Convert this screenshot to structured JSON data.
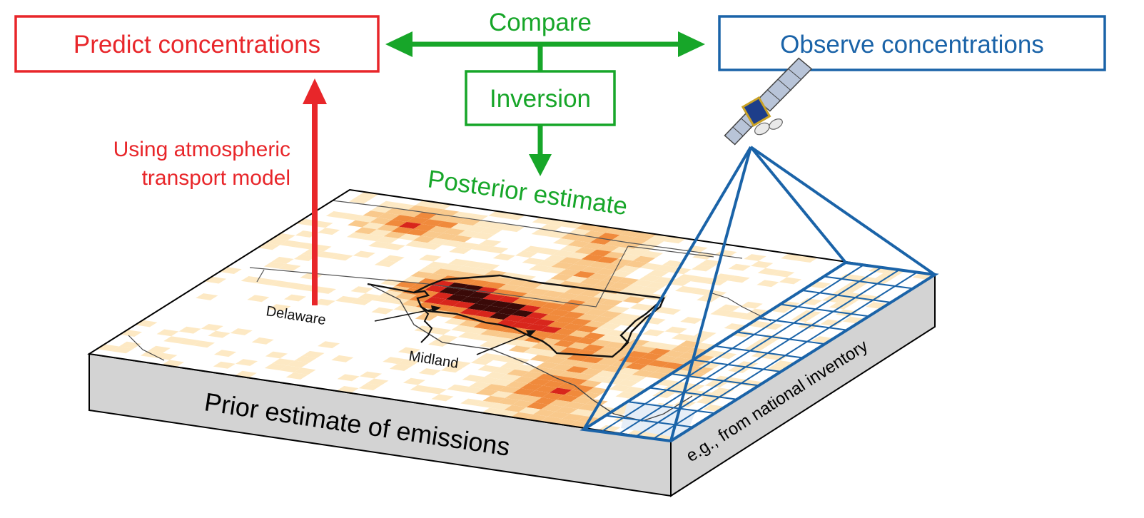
{
  "boxes": {
    "predict": {
      "label": "Predict concentrations",
      "color": "#e8262a"
    },
    "observe": {
      "label": "Observe concentrations",
      "color": "#1a63a8"
    },
    "inversion": {
      "label": "Inversion",
      "color": "#17a629"
    }
  },
  "labels": {
    "compare": "Compare",
    "transport_line1": "Using atmospheric",
    "transport_line2": "transport model",
    "posterior": "Posterior estimate",
    "prior": "Prior estimate of emissions",
    "inventory": "e.g., from national inventory",
    "delaware": "Delaware",
    "midland": "Midland"
  },
  "colors": {
    "red": "#e8262a",
    "green": "#17a629",
    "blue": "#1a63a8",
    "slab_side": "#d3d3d3",
    "map_base": "#fde9c4",
    "heat_light": "#f9c98c",
    "heat_mid": "#f08a3c",
    "heat_high": "#d8261c",
    "heat_max": "#3a0a08"
  },
  "icons": {
    "satellite": "satellite-icon"
  }
}
